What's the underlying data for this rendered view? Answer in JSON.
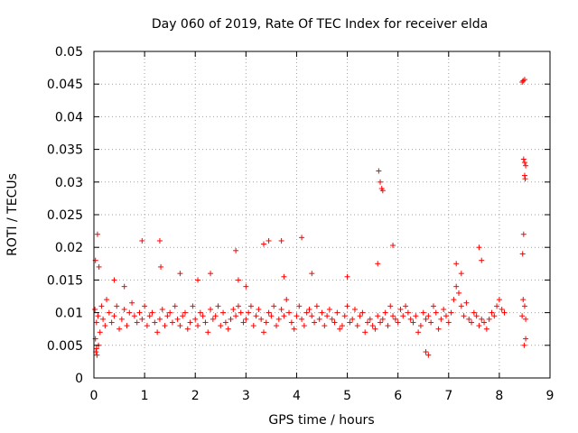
{
  "chart_data": {
    "type": "scatter",
    "title": "Day 060 of 2019, Rate Of TEC Index for receiver elda",
    "xlabel": "GPS time / hours",
    "ylabel": "ROTI / TECUs",
    "xlim": [
      0,
      9
    ],
    "ylim": [
      0,
      0.05
    ],
    "xticks": [
      0,
      1,
      2,
      3,
      4,
      5,
      6,
      7,
      8,
      9
    ],
    "xtick_labels": [
      "0",
      "1",
      "2",
      "3",
      "4",
      "5",
      "6",
      "7",
      "8",
      "9"
    ],
    "yticks": [
      0,
      0.005,
      0.01,
      0.015,
      0.02,
      0.025,
      0.03,
      0.035,
      0.04,
      0.045,
      0.05
    ],
    "ytick_labels": [
      "0",
      "0.005",
      "0.01",
      "0.015",
      "0.02",
      "0.025",
      "0.03",
      "0.035",
      "0.04",
      "0.045",
      "0.05"
    ],
    "grid": true,
    "marker": "plus",
    "colors": {
      "series": "#ff0000",
      "axis": "#000000",
      "grid": "#a0a0a0"
    },
    "series": [
      {
        "name": "ROTI",
        "x": [
          0.02,
          0.05,
          0.08,
          0.12,
          0.15,
          0.18,
          0.22,
          0.25,
          0.3,
          0.35,
          0.4,
          0.45,
          0.5,
          0.55,
          0.6,
          0.65,
          0.7,
          0.75,
          0.8,
          0.85,
          0.9,
          0.95,
          1.0,
          1.05,
          1.1,
          1.15,
          1.2,
          1.25,
          1.3,
          1.35,
          1.4,
          1.45,
          1.5,
          1.55,
          1.6,
          1.65,
          1.7,
          1.75,
          1.8,
          1.85,
          1.9,
          1.95,
          2.0,
          2.05,
          2.1,
          2.15,
          2.2,
          2.25,
          2.3,
          2.35,
          2.4,
          2.45,
          2.5,
          2.55,
          2.6,
          2.65,
          2.7,
          2.75,
          2.8,
          2.85,
          2.9,
          2.95,
          3.0,
          3.05,
          3.1,
          3.15,
          3.2,
          3.25,
          3.3,
          3.35,
          3.4,
          3.45,
          3.5,
          3.55,
          3.6,
          3.65,
          3.7,
          3.75,
          3.8,
          3.85,
          3.9,
          3.95,
          4.0,
          4.05,
          4.1,
          4.15,
          4.2,
          4.25,
          4.3,
          4.35,
          4.4,
          4.45,
          4.5,
          4.55,
          4.6,
          4.65,
          4.7,
          4.75,
          4.8,
          4.85,
          4.9,
          4.95,
          5.0,
          5.05,
          5.1,
          5.15,
          5.2,
          5.25,
          5.3,
          5.35,
          5.4,
          5.45,
          5.5,
          5.55,
          5.6,
          5.65,
          5.7,
          5.75,
          5.8,
          5.85,
          5.9,
          5.95,
          6.0,
          6.05,
          6.1,
          6.15,
          6.2,
          6.25,
          6.3,
          6.35,
          6.4,
          6.45,
          6.5,
          6.55,
          6.6,
          6.65,
          6.7,
          6.75,
          6.8,
          6.85,
          6.9,
          6.95,
          7.0,
          7.05,
          7.1,
          7.15,
          7.2,
          7.25,
          7.3,
          7.35,
          7.4,
          7.45,
          7.5,
          7.55,
          7.6,
          7.65,
          7.7,
          7.75,
          7.8,
          7.85,
          7.9,
          7.95,
          8.0,
          8.05,
          8.1,
          8.45,
          8.47,
          8.5,
          8.52,
          0.03,
          0.07,
          0.1,
          0.04,
          0.06,
          0.09,
          0.03,
          0.05,
          0.4,
          0.6,
          0.95,
          1.3,
          1.32,
          1.7,
          2.05,
          2.3,
          2.8,
          2.85,
          3.0,
          3.35,
          3.45,
          3.7,
          3.75,
          4.1,
          4.3,
          5.0,
          5.6,
          5.62,
          5.65,
          5.68,
          5.7,
          5.9,
          6.55,
          6.6,
          7.15,
          7.25,
          7.6,
          7.65,
          8.45,
          8.47,
          8.5,
          8.48,
          8.5,
          8.52,
          8.5,
          8.51,
          8.48,
          8.46,
          8.52,
          8.49
        ],
        "y": [
          0.0105,
          0.0085,
          0.0095,
          0.007,
          0.011,
          0.009,
          0.008,
          0.012,
          0.01,
          0.0085,
          0.0095,
          0.011,
          0.0075,
          0.009,
          0.0105,
          0.008,
          0.01,
          0.0115,
          0.0095,
          0.0085,
          0.01,
          0.009,
          0.011,
          0.008,
          0.0095,
          0.01,
          0.0085,
          0.007,
          0.009,
          0.0105,
          0.008,
          0.0095,
          0.01,
          0.0085,
          0.011,
          0.009,
          0.008,
          0.0095,
          0.01,
          0.0075,
          0.0085,
          0.011,
          0.009,
          0.008,
          0.01,
          0.0095,
          0.0085,
          0.007,
          0.0105,
          0.009,
          0.0095,
          0.011,
          0.008,
          0.01,
          0.0085,
          0.0075,
          0.009,
          0.0105,
          0.0095,
          0.011,
          0.01,
          0.0085,
          0.009,
          0.01,
          0.011,
          0.008,
          0.0095,
          0.0105,
          0.009,
          0.007,
          0.0085,
          0.01,
          0.0095,
          0.011,
          0.008,
          0.009,
          0.0105,
          0.0095,
          0.012,
          0.01,
          0.0085,
          0.0075,
          0.0095,
          0.011,
          0.009,
          0.008,
          0.01,
          0.0105,
          0.0095,
          0.0085,
          0.011,
          0.009,
          0.01,
          0.008,
          0.0095,
          0.0105,
          0.009,
          0.0085,
          0.01,
          0.0075,
          0.008,
          0.0095,
          0.011,
          0.0085,
          0.009,
          0.0105,
          0.008,
          0.0095,
          0.01,
          0.007,
          0.0085,
          0.009,
          0.008,
          0.0075,
          0.0095,
          0.0085,
          0.009,
          0.01,
          0.008,
          0.011,
          0.0095,
          0.009,
          0.0085,
          0.0105,
          0.0095,
          0.011,
          0.01,
          0.009,
          0.0085,
          0.0095,
          0.007,
          0.008,
          0.01,
          0.009,
          0.0095,
          0.0085,
          0.011,
          0.01,
          0.0075,
          0.009,
          0.0105,
          0.0095,
          0.0085,
          0.01,
          0.012,
          0.014,
          0.013,
          0.011,
          0.0095,
          0.0115,
          0.009,
          0.0085,
          0.01,
          0.0095,
          0.008,
          0.009,
          0.0085,
          0.0075,
          0.009,
          0.01,
          0.0095,
          0.011,
          0.012,
          0.0105,
          0.01,
          0.0095,
          0.012,
          0.011,
          0.009,
          0.018,
          0.022,
          0.017,
          0.004,
          0.0035,
          0.005,
          0.006,
          0.0045,
          0.015,
          0.014,
          0.021,
          0.021,
          0.017,
          0.016,
          0.015,
          0.016,
          0.0195,
          0.015,
          0.014,
          0.0205,
          0.021,
          0.021,
          0.0155,
          0.0215,
          0.016,
          0.0155,
          0.0175,
          0.0317,
          0.03,
          0.029,
          0.0287,
          0.0203,
          0.004,
          0.0035,
          0.0175,
          0.016,
          0.02,
          0.018,
          0.0453,
          0.0455,
          0.0457,
          0.0335,
          0.033,
          0.0325,
          0.031,
          0.0305,
          0.022,
          0.019,
          0.006,
          0.005
        ]
      }
    ]
  }
}
